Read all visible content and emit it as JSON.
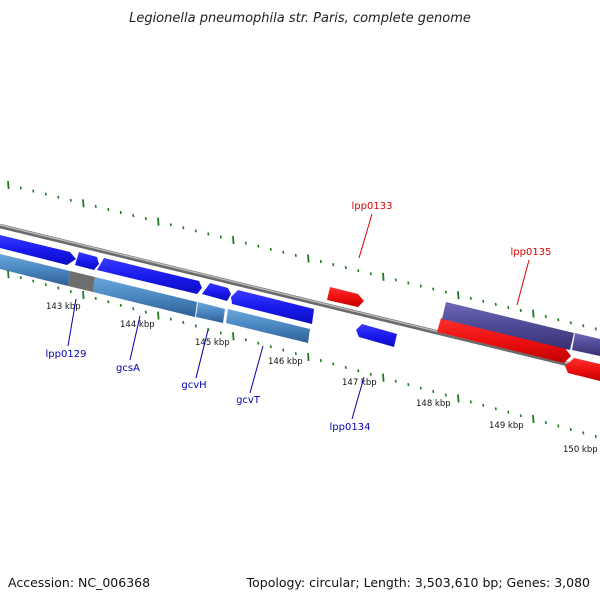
{
  "title": "Legionella pneumophila str. Paris, complete genome",
  "footer": {
    "accession": "Accession: NC_006368",
    "summary": "Topology: circular; Length: 3,503,610 bp; Genes: 3,080"
  },
  "colors": {
    "forward_gene": "#1a1aee",
    "reverse_gene": "#ee1010",
    "forward_rna": "#4a86c0",
    "reverse_rna": "#4f4a96",
    "pseudo": "#6e6e6e",
    "gc_ticks": "#1e7a1e",
    "backbone": "#8c8c8c",
    "label_forward": "#0000aa",
    "label_reverse": "#dd0000"
  },
  "ticks": [
    "143 kbp",
    "144 kbp",
    "145 kbp",
    "146 kbp",
    "147 kbp",
    "148 kbp",
    "149 kbp",
    "150 kbp"
  ],
  "gene_labels": {
    "lpp0129": "lpp0129",
    "gcsA": "gcsA",
    "gcvH": "gcvH",
    "gcvT": "gcvT",
    "lpp0133": "lpp0133",
    "lpp0134": "lpp0134",
    "lpp0135": "lpp0135"
  }
}
